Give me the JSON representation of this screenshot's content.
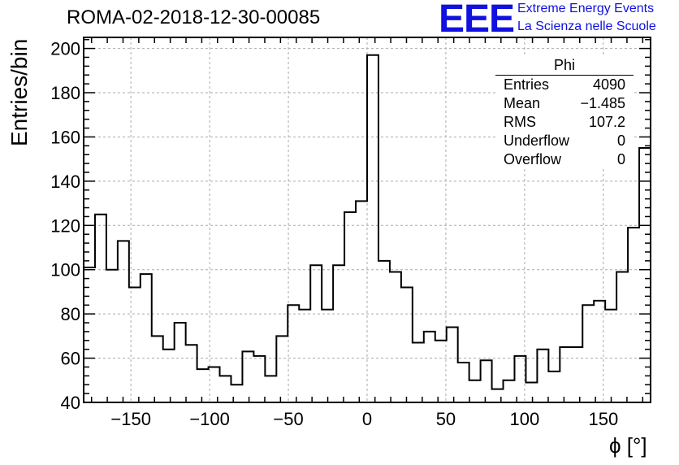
{
  "title": "ROMA-02-2018-12-30-00085",
  "logo": {
    "text": "EEE",
    "line1": "Extreme Energy Events",
    "line2": "La Scienza nelle Scuole",
    "color": "#1010e0"
  },
  "stats": {
    "title": "Phi",
    "rows": [
      {
        "label": "Entries",
        "value": "4090"
      },
      {
        "label": "Mean",
        "value": "−1.485"
      },
      {
        "label": "RMS",
        "value": "107.2"
      },
      {
        "label": "Underflow",
        "value": "0"
      },
      {
        "label": "Overflow",
        "value": "0"
      }
    ]
  },
  "chart_data": {
    "type": "histogram",
    "title": "ROMA-02-2018-12-30-00085",
    "xlabel": "ϕ [°]",
    "ylabel": "Entries/bin",
    "xlim": [
      -180,
      180
    ],
    "ylim": [
      40,
      205
    ],
    "grid": true,
    "bin_width": 7.2,
    "bin_start": -180,
    "values": [
      101,
      125,
      100,
      113,
      92,
      98,
      70,
      64,
      76,
      66,
      55,
      56,
      52,
      48,
      63,
      61,
      52,
      70,
      84,
      82,
      102,
      82,
      102,
      126,
      131,
      197,
      104,
      99,
      92,
      67,
      72,
      68,
      74,
      58,
      50,
      59,
      46,
      50,
      61,
      49,
      64,
      54,
      65,
      65,
      84,
      86,
      82,
      99,
      119,
      155
    ],
    "xticks": [
      -150,
      -100,
      -50,
      0,
      50,
      100,
      150
    ],
    "yticks": [
      40,
      60,
      80,
      100,
      120,
      140,
      160,
      180,
      200
    ],
    "xtick_labels": [
      "−150",
      "−100",
      "−50",
      "0",
      "50",
      "100",
      "150"
    ],
    "ytick_labels": [
      "40",
      "60",
      "80",
      "100",
      "120",
      "140",
      "160",
      "180",
      "200"
    ]
  }
}
